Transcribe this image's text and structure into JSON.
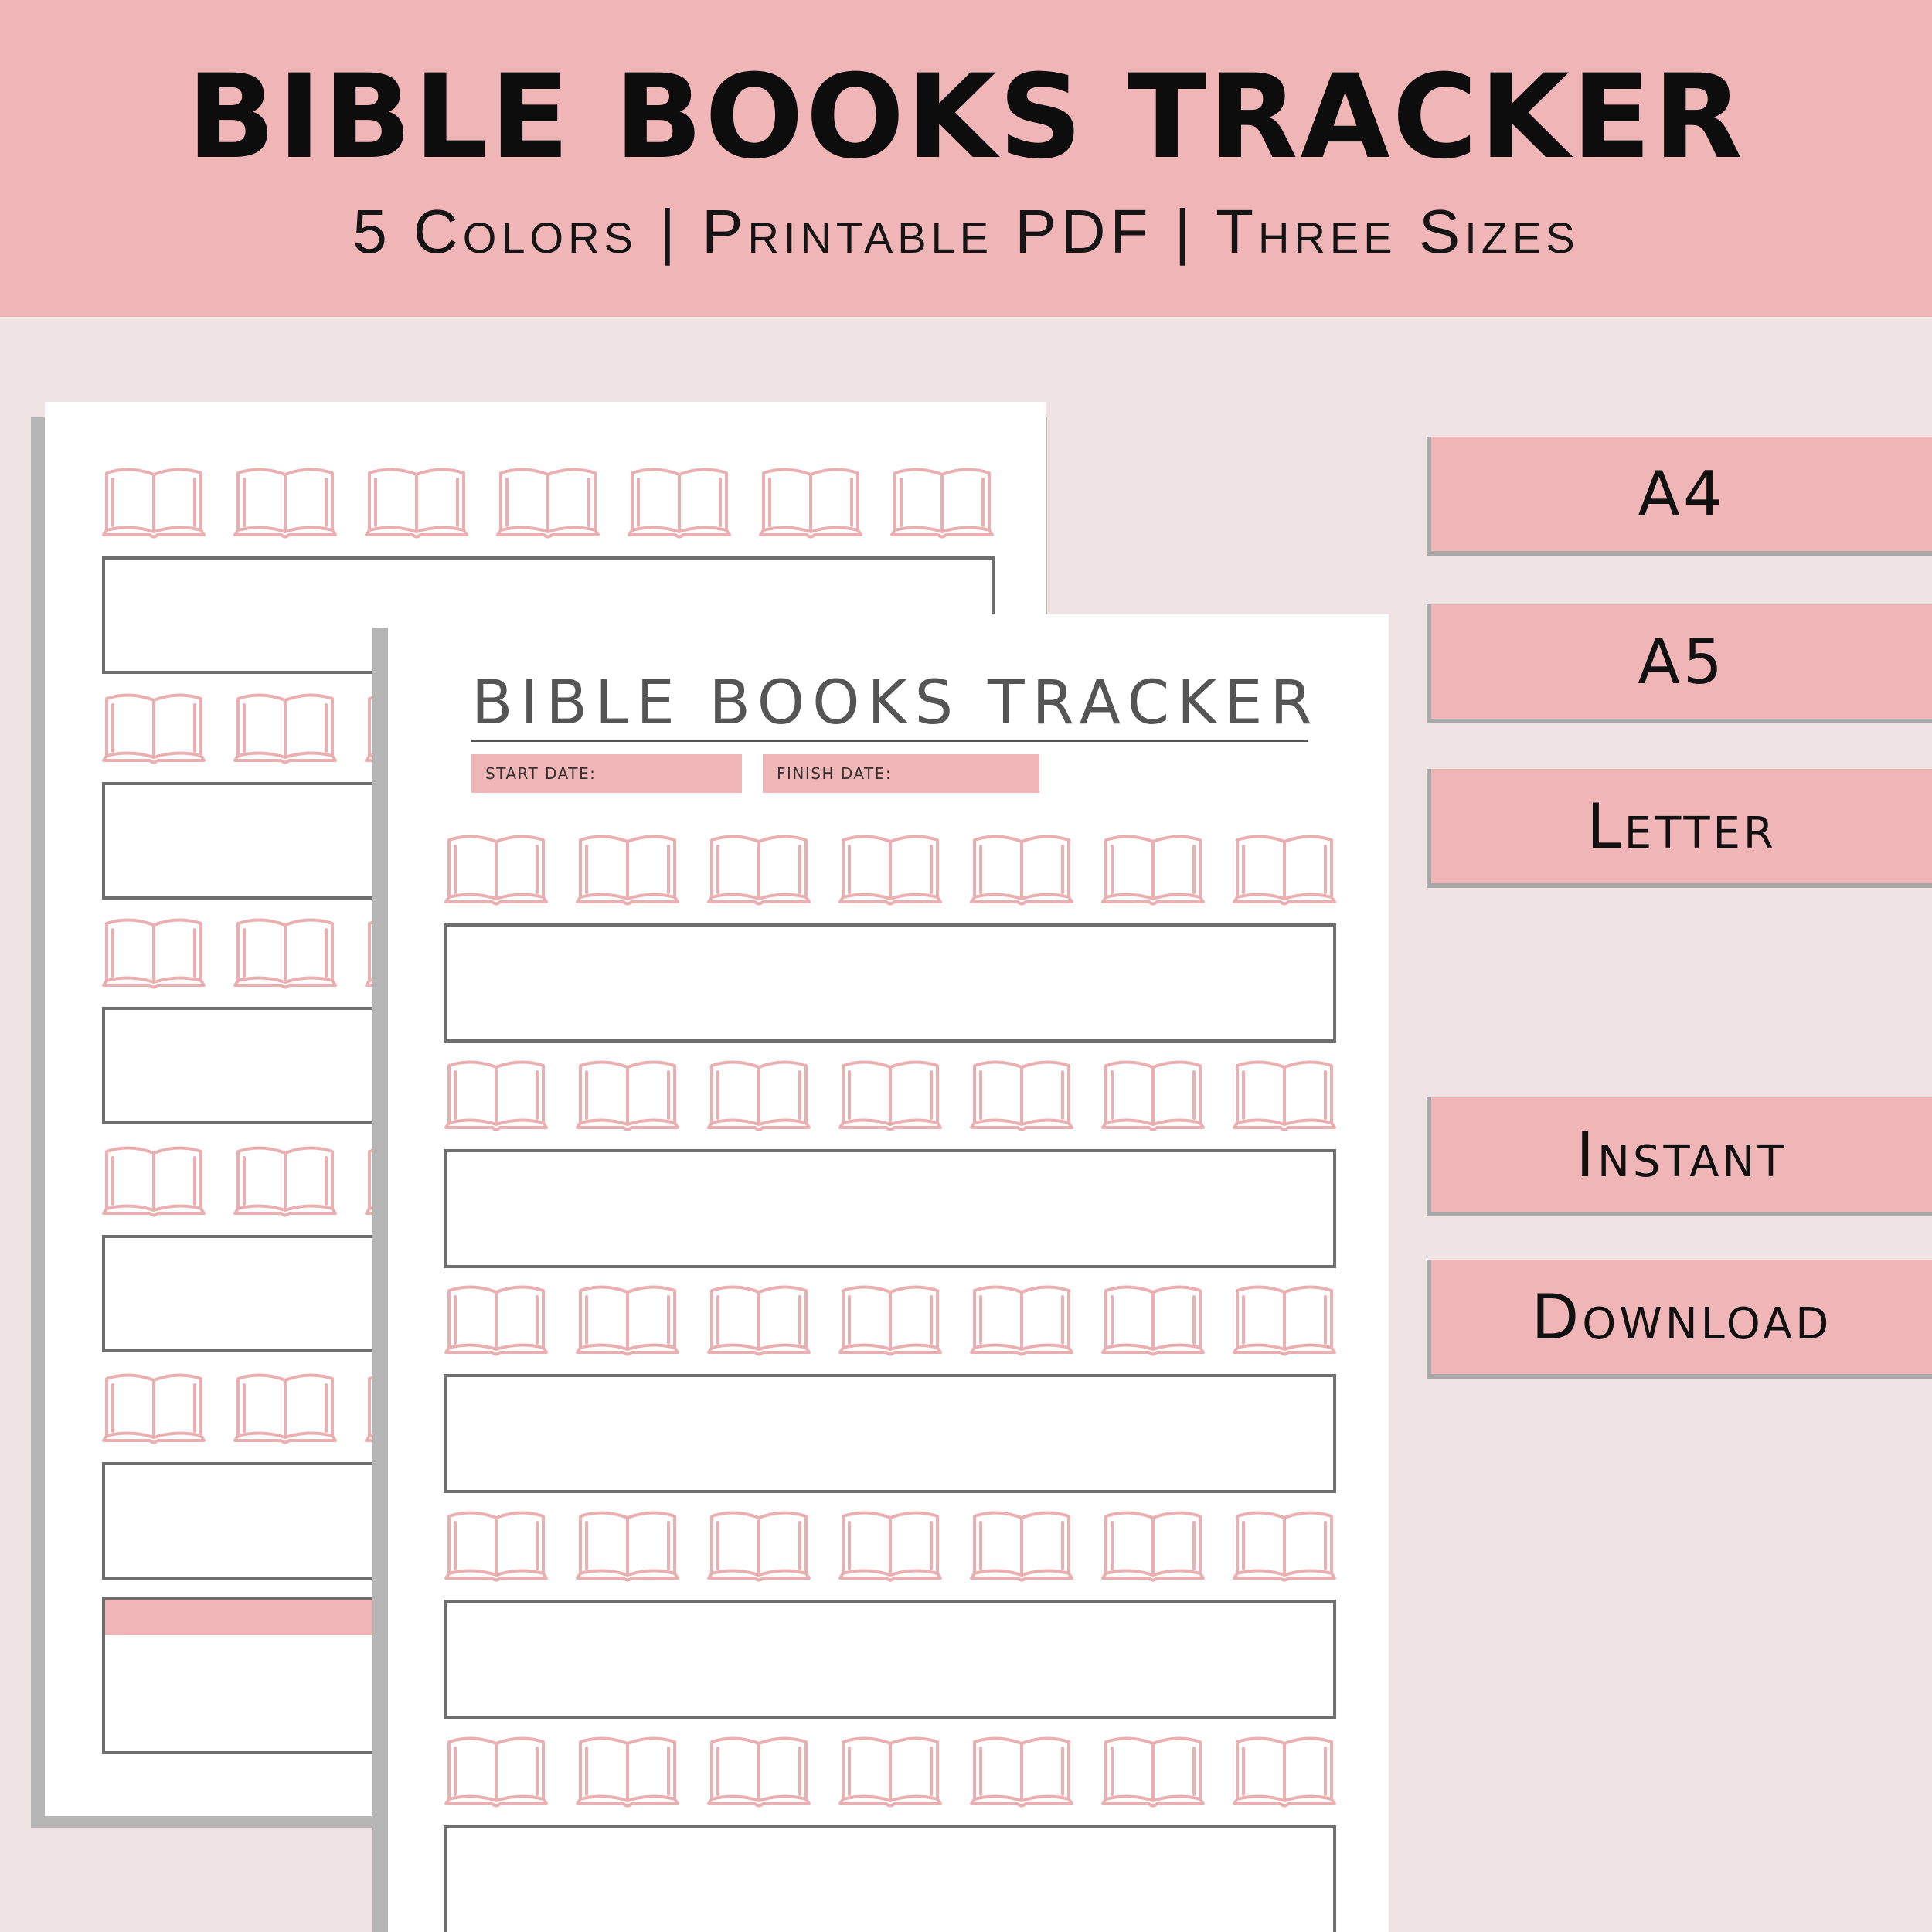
{
  "banner": {
    "title": "BIBLE BOOKS TRACKER",
    "subtitle": "5 Colors | Printable PDF | Three Sizes"
  },
  "front_page": {
    "title": "BIBLE BOOKS TRACKER",
    "start_date_label": "START DATE:",
    "finish_date_label": "FINISH DATE:"
  },
  "tags": {
    "a4": "A4",
    "a5": "A5",
    "letter": "Letter",
    "instant": "Instant",
    "download": "Download"
  },
  "icons": {
    "book": "open-book-icon"
  },
  "colors": {
    "accent_pink": "#f0b5b6",
    "background": "#efe3e3",
    "text": "#111111"
  }
}
